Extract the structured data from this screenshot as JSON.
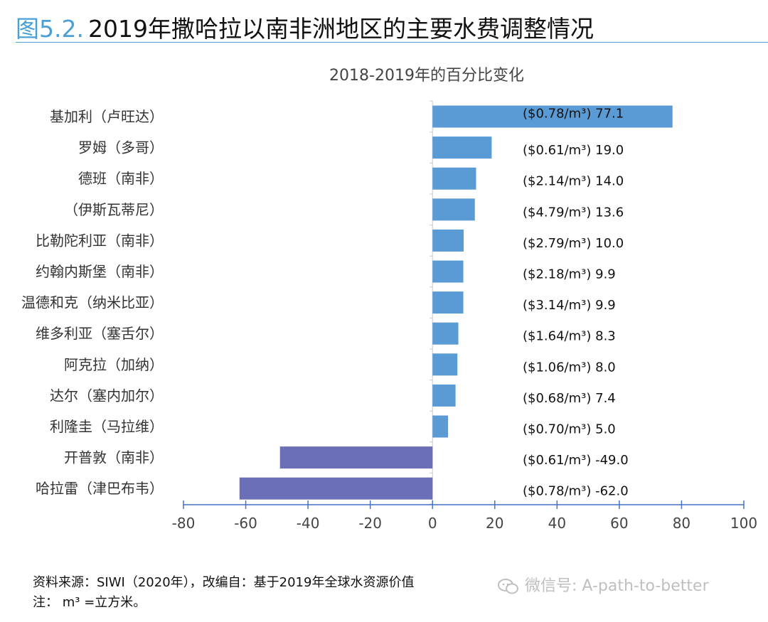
{
  "figure": {
    "number": "图5.2.",
    "title": "2019年撒哈拉以南非洲地区的主要水费调整情况"
  },
  "chart_data": {
    "type": "bar",
    "orientation": "horizontal",
    "title": "2018-2019年的百分比变化",
    "categories": [
      "基加利（卢旺达）",
      "罗姆（多哥）",
      "德班（南非）",
      "（伊斯瓦蒂尼）",
      "比勒陀利亚（南非）",
      "约翰内斯堡（南非）",
      "温德和克（纳米比亚）",
      "维多利亚（塞舌尔）",
      "阿克拉（加纳）",
      "达尔（塞内加尔）",
      "利隆圭（马拉维）",
      "开普敦（南非）",
      "哈拉雷（津巴布韦）"
    ],
    "values": [
      77.1,
      19.0,
      14.0,
      13.6,
      10.0,
      9.9,
      9.9,
      8.3,
      8.0,
      7.4,
      5.0,
      -49.0,
      -62.0
    ],
    "value_labels": [
      "($0.78/m³) 77.1",
      "($0.61/m³)  19.0",
      "($2.14/m³)  14.0",
      "($4.79/m³)  13.6",
      "($2.79/m³)  10.0",
      "($2.18/m³)  9.9",
      "($3.14/m³)  9.9",
      "($1.64/m³)  8.3",
      "($1.06/m³)  8.0",
      "($0.68/m³)  7.4",
      "($0.70/m³)  5.0",
      "($0.61/m³)  -49.0",
      "($0.78/m³) -62.0"
    ],
    "x_ticks": [
      "-80",
      "-60",
      "-40",
      "-20",
      "0",
      "20",
      "40",
      "60",
      "80",
      "100"
    ],
    "xlim": [
      -80,
      100
    ],
    "grid": false,
    "colors": {
      "positive": "#5b9bd5",
      "negative": "#6a6fb8",
      "axis": "#4472c4"
    }
  },
  "footer": {
    "source": "资料来源：SIWI（2020年），改编自：基于2019年全球水资源价值",
    "note": "注： m³ =立方米。"
  },
  "watermark": {
    "text": "微信号: A-path-to-better",
    "icon": "wechat-icon"
  }
}
